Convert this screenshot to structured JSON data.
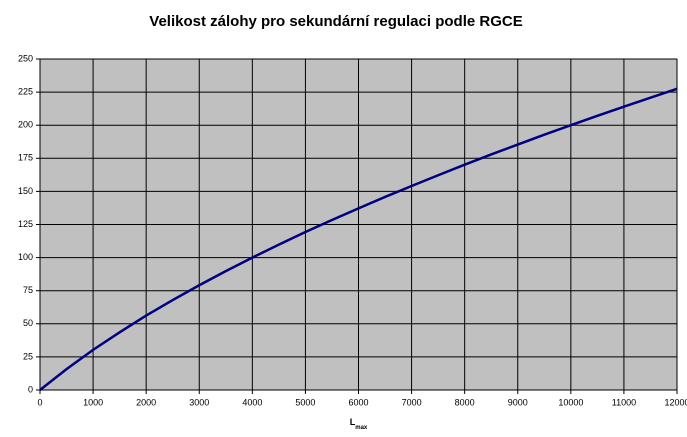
{
  "chart_data": {
    "type": "line",
    "title": "Velikost zálohy pro sekundární regulaci podle RGCE",
    "xlabel": {
      "main": "L",
      "sub": "max"
    },
    "x": [
      0,
      500,
      1000,
      1500,
      2000,
      2500,
      3000,
      3500,
      4000,
      4500,
      5000,
      5500,
      6000,
      6500,
      7000,
      7500,
      8000,
      8500,
      9000,
      9500,
      10000,
      10500,
      11000,
      11500,
      12000
    ],
    "values": [
      0,
      15.8,
      30.3,
      43.6,
      56.2,
      67.9,
      79.1,
      89.8,
      100,
      109.8,
      119.3,
      128.4,
      137.2,
      145.8,
      154.1,
      162.2,
      170.2,
      177.9,
      185.4,
      192.8,
      200,
      207.1,
      214.0,
      220.8,
      227.5
    ],
    "color": "#000080",
    "plot_background": "#c0c0c0",
    "grid": true,
    "xlim": [
      0,
      12000
    ],
    "xticks": [
      0,
      1000,
      2000,
      3000,
      4000,
      5000,
      6000,
      7000,
      8000,
      9000,
      10000,
      11000,
      12000
    ],
    "ylim": [
      0,
      250
    ],
    "yticks": [
      0,
      25,
      50,
      75,
      100,
      125,
      150,
      175,
      200,
      225,
      250
    ]
  }
}
